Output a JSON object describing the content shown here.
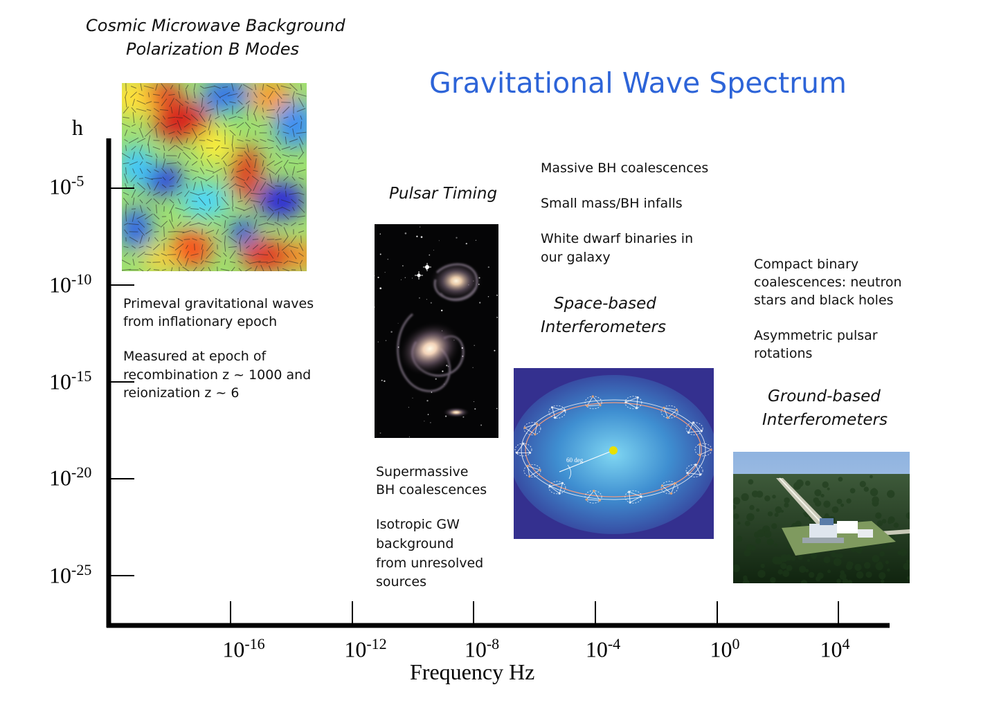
{
  "title": "Gravitational Wave Spectrum",
  "cmb": {
    "caption_line1": "Cosmic Microwave Background",
    "caption_line2": "Polarization B Modes",
    "desc_line1": "Primeval gravitational waves",
    "desc_line2": "from inflationary epoch",
    "measured_line1": "Measured at epoch of",
    "measured_line2": "recombination z ~ 1000 and",
    "measured_line3": "reionization z ~ 6"
  },
  "pulsar": {
    "heading": "Pulsar Timing",
    "sources_line1": "Supermassive",
    "sources_line2": "BH coalescences",
    "iso_line1": "Isotropic GW",
    "iso_line2": "background",
    "iso_line3": "from unresolved",
    "iso_line4": "sources"
  },
  "space": {
    "source1": "Massive BH coalescences",
    "source2": "Small mass/BH infalls",
    "source3_line1": "White dwarf binaries in",
    "source3_line2": "our galaxy",
    "heading_line1": "Space-based",
    "heading_line2": "Interferometers",
    "orbit_label": "60 deg"
  },
  "ground": {
    "source1_line1": "Compact binary",
    "source1_line2": "coalescences: neutron",
    "source1_line3": "stars and black holes",
    "source2_line1": "Asymmetric pulsar",
    "source2_line2": "rotations",
    "heading_line1": "Ground-based",
    "heading_line2": "Interferometers"
  },
  "axes": {
    "y_title": "h",
    "x_title": "Frequency Hz",
    "y_ticks": [
      {
        "base": "10",
        "exp": "-5"
      },
      {
        "base": "10",
        "exp": "-10"
      },
      {
        "base": "10",
        "exp": "-15"
      },
      {
        "base": "10",
        "exp": "-20"
      },
      {
        "base": "10",
        "exp": "-25"
      }
    ],
    "x_ticks": [
      {
        "base": "10",
        "exp": "-16"
      },
      {
        "base": "10",
        "exp": "-12"
      },
      {
        "base": "10",
        "exp": "-8"
      },
      {
        "base": "10",
        "exp": "-4"
      },
      {
        "base": "10",
        "exp": "0"
      },
      {
        "base": "10",
        "exp": "4"
      }
    ]
  },
  "colors": {
    "title": "#2d64d8",
    "axis": "#000000",
    "space_bg": "#34308f",
    "orbit_center": "#e8e000"
  }
}
